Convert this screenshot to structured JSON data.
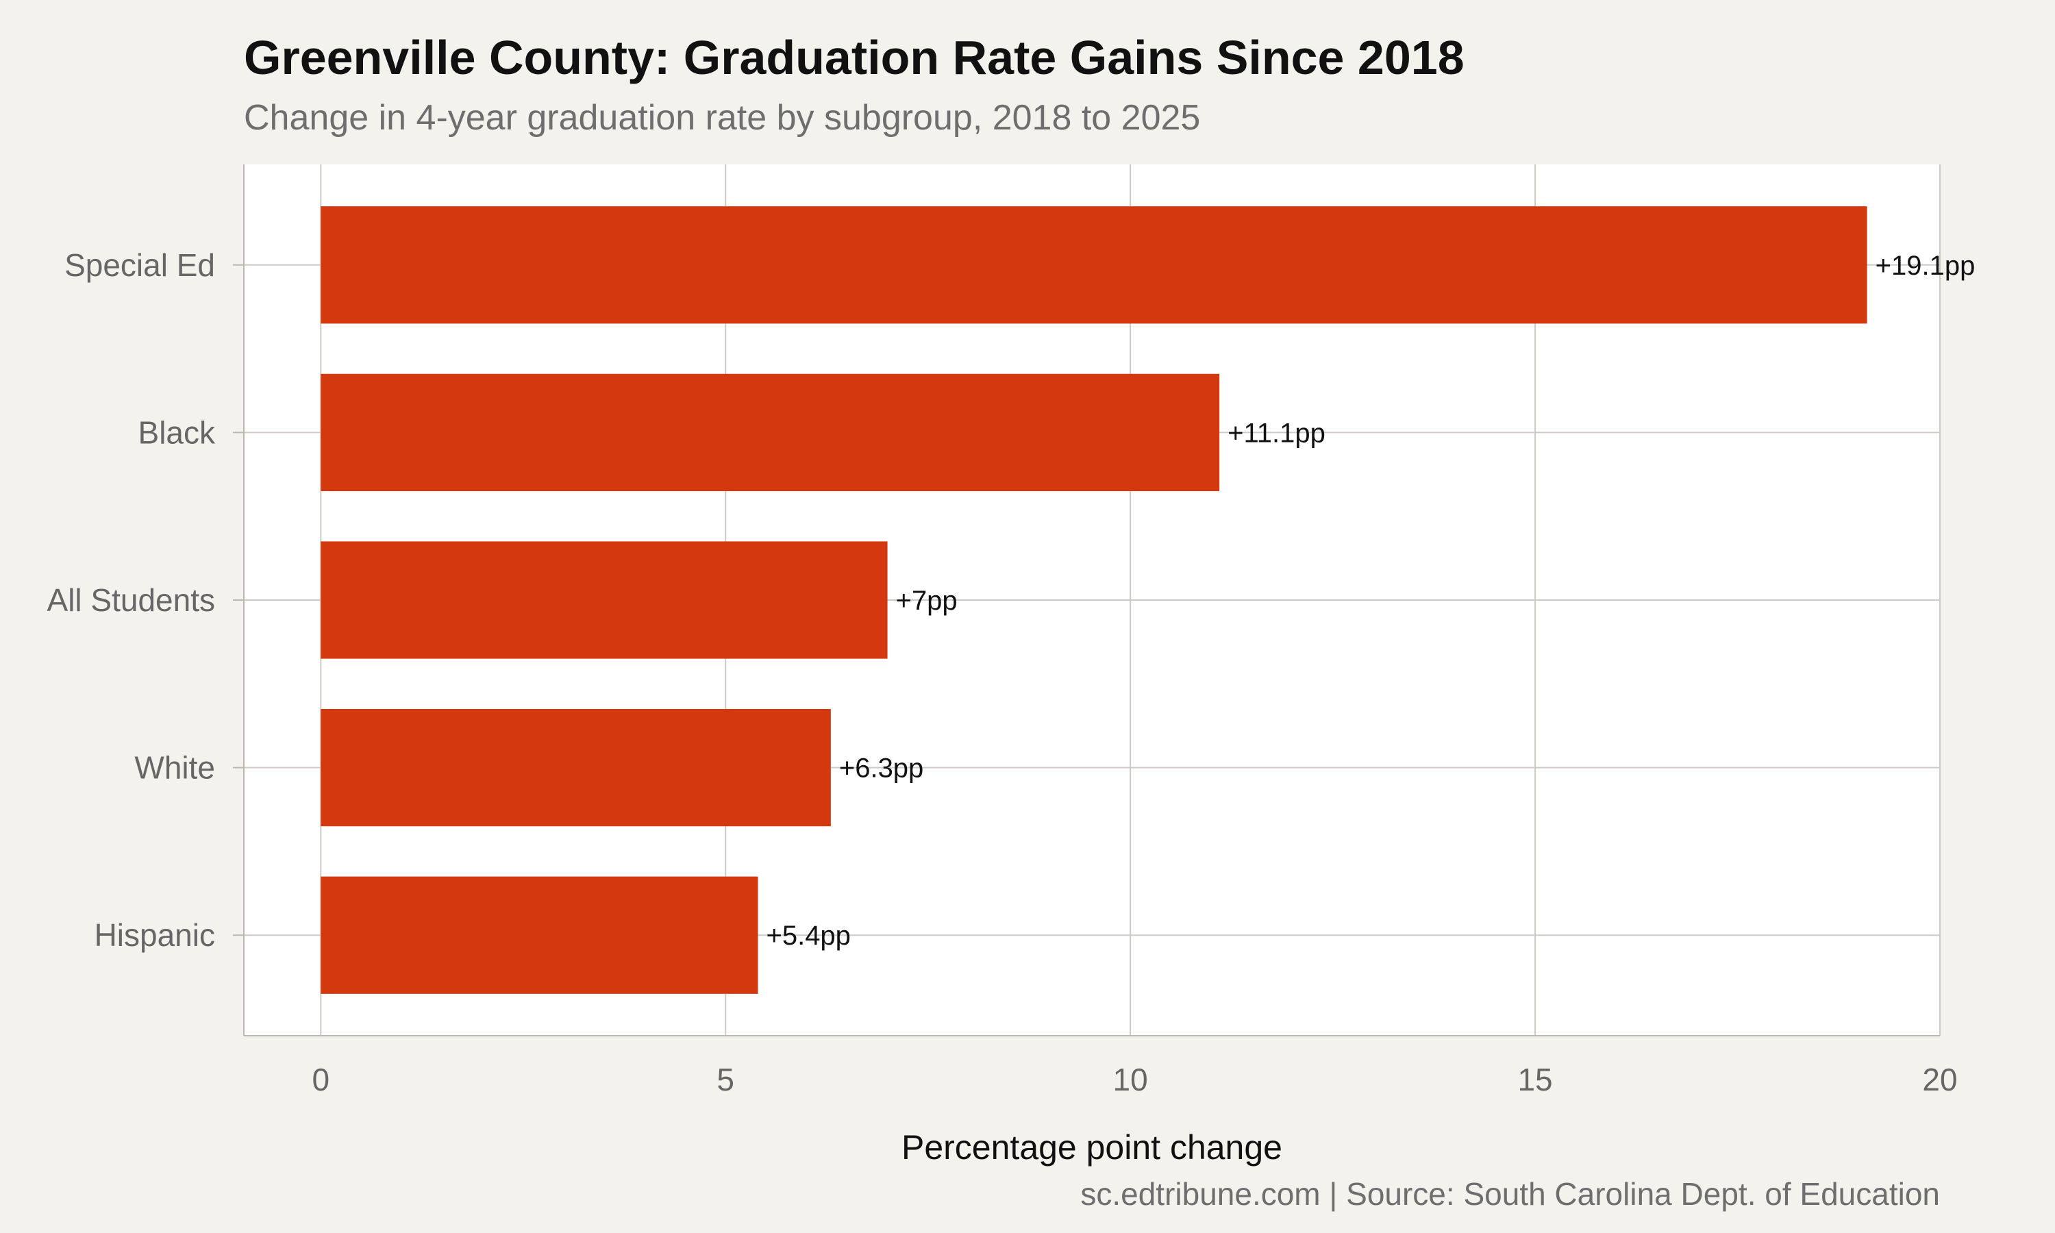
{
  "chart_data": {
    "type": "bar",
    "orientation": "horizontal",
    "title": "Greenville County: Graduation Rate Gains Since 2018",
    "subtitle": "Change in 4-year graduation rate by subgroup, 2018 to 2025",
    "xlabel": "Percentage point change",
    "ylabel": "",
    "categories": [
      "Special Ed",
      "Black",
      "All Students",
      "White",
      "Hispanic"
    ],
    "values": [
      19.1,
      11.1,
      7.0,
      6.3,
      5.4
    ],
    "data_labels": [
      "+19.1pp",
      "+11.1pp",
      "+7pp",
      "+6.3pp",
      "+5.4pp"
    ],
    "xlim": [
      -0.95,
      20
    ],
    "xticks": [
      0,
      5,
      10,
      15,
      20
    ],
    "xtick_labels": [
      "0",
      "5",
      "10",
      "15",
      "20"
    ],
    "grid": true,
    "bar_color": "#d4380e",
    "caption": "sc.edtribune.com | Source: South Carolina Dept. of Education"
  }
}
